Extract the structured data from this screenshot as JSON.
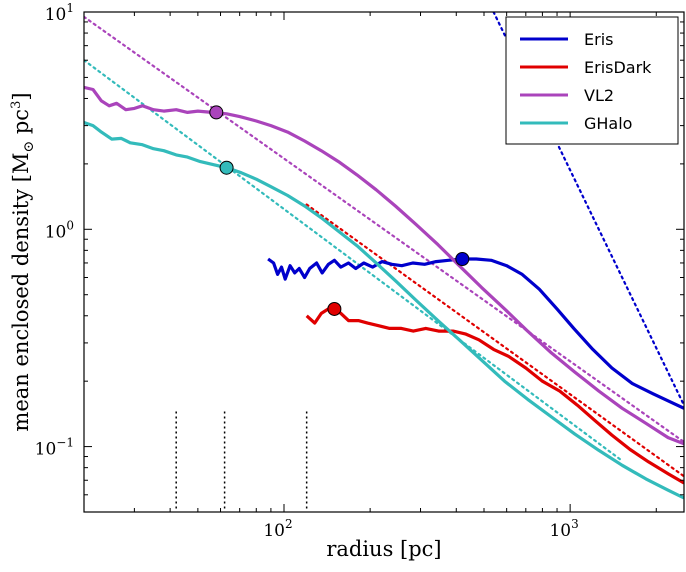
{
  "chart_data": {
    "type": "line",
    "xscale": "log",
    "yscale": "log",
    "xlim": [
      20,
      2500
    ],
    "ylim": [
      0.05,
      10
    ],
    "xlabel": "radius  [pc]",
    "ylabel_main": "mean enclosed density  [M",
    "ylabel_sub": "⊙",
    "ylabel_tail": " pc",
    "ylabel_sup": "3",
    "ylabel_close": "]",
    "xticks": [
      {
        "value": 100,
        "base": "10",
        "exp": "2"
      },
      {
        "value": 1000,
        "base": "10",
        "exp": "3"
      }
    ],
    "yticks": [
      {
        "value": 0.1,
        "base": "10",
        "exp": "−1"
      },
      {
        "value": 1,
        "base": "10",
        "exp": "0"
      },
      {
        "value": 10,
        "base": "10",
        "exp": "1"
      }
    ],
    "legend_position": "top-right",
    "vertical_markers": [
      42,
      62,
      120
    ],
    "series": [
      {
        "name": "Eris",
        "color": "#0000cc",
        "points": [
          [
            88,
            0.73
          ],
          [
            92,
            0.7
          ],
          [
            95,
            0.62
          ],
          [
            98,
            0.67
          ],
          [
            101,
            0.59
          ],
          [
            105,
            0.68
          ],
          [
            109,
            0.63
          ],
          [
            113,
            0.66
          ],
          [
            118,
            0.6
          ],
          [
            123,
            0.66
          ],
          [
            130,
            0.7
          ],
          [
            136,
            0.63
          ],
          [
            143,
            0.69
          ],
          [
            150,
            0.72
          ],
          [
            158,
            0.67
          ],
          [
            168,
            0.7
          ],
          [
            178,
            0.66
          ],
          [
            190,
            0.7
          ],
          [
            204,
            0.67
          ],
          [
            220,
            0.71
          ],
          [
            238,
            0.69
          ],
          [
            258,
            0.68
          ],
          [
            282,
            0.7
          ],
          [
            310,
            0.69
          ],
          [
            340,
            0.71
          ],
          [
            375,
            0.72
          ],
          [
            420,
            0.73
          ],
          [
            470,
            0.73
          ],
          [
            530,
            0.72
          ],
          [
            600,
            0.68
          ],
          [
            680,
            0.62
          ],
          [
            780,
            0.53
          ],
          [
            900,
            0.43
          ],
          [
            1030,
            0.35
          ],
          [
            1200,
            0.28
          ],
          [
            1400,
            0.23
          ],
          [
            1650,
            0.195
          ],
          [
            1950,
            0.175
          ],
          [
            2300,
            0.158
          ],
          [
            2500,
            0.15
          ]
        ],
        "marker": [
          420,
          0.73
        ],
        "fit": [
          [
            540,
            10
          ],
          [
            2500,
            0.155
          ]
        ]
      },
      {
        "name": "ErisDark",
        "color": "#e00000",
        "points": [
          [
            120,
            0.4
          ],
          [
            128,
            0.37
          ],
          [
            135,
            0.41
          ],
          [
            143,
            0.43
          ],
          [
            155,
            0.42
          ],
          [
            168,
            0.38
          ],
          [
            182,
            0.38
          ],
          [
            196,
            0.37
          ],
          [
            214,
            0.36
          ],
          [
            234,
            0.35
          ],
          [
            257,
            0.35
          ],
          [
            283,
            0.34
          ],
          [
            313,
            0.35
          ],
          [
            347,
            0.34
          ],
          [
            390,
            0.34
          ],
          [
            430,
            0.33
          ],
          [
            480,
            0.31
          ],
          [
            540,
            0.28
          ],
          [
            610,
            0.26
          ],
          [
            700,
            0.23
          ],
          [
            800,
            0.2
          ],
          [
            920,
            0.18
          ],
          [
            1060,
            0.155
          ],
          [
            1220,
            0.132
          ],
          [
            1400,
            0.113
          ],
          [
            1620,
            0.097
          ],
          [
            1880,
            0.085
          ],
          [
            2200,
            0.075
          ],
          [
            2500,
            0.068
          ]
        ],
        "marker": [
          150,
          0.43
        ],
        "fit": [
          [
            120,
            1.3
          ],
          [
            2500,
            0.073
          ]
        ]
      },
      {
        "name": "VL2",
        "color": "#aa44bb",
        "points": [
          [
            20,
            4.5
          ],
          [
            21.5,
            4.4
          ],
          [
            23,
            3.9
          ],
          [
            24.5,
            3.7
          ],
          [
            26,
            3.8
          ],
          [
            28,
            3.55
          ],
          [
            30,
            3.6
          ],
          [
            32,
            3.7
          ],
          [
            35,
            3.55
          ],
          [
            38,
            3.5
          ],
          [
            42,
            3.55
          ],
          [
            46,
            3.45
          ],
          [
            50,
            3.5
          ],
          [
            56,
            3.45
          ],
          [
            63,
            3.4
          ],
          [
            70,
            3.3
          ],
          [
            80,
            3.15
          ],
          [
            90,
            3.0
          ],
          [
            103,
            2.8
          ],
          [
            118,
            2.55
          ],
          [
            135,
            2.3
          ],
          [
            155,
            2.05
          ],
          [
            180,
            1.78
          ],
          [
            210,
            1.52
          ],
          [
            245,
            1.28
          ],
          [
            290,
            1.05
          ],
          [
            345,
            0.85
          ],
          [
            410,
            0.68
          ],
          [
            490,
            0.54
          ],
          [
            590,
            0.43
          ],
          [
            710,
            0.34
          ],
          [
            860,
            0.27
          ],
          [
            1040,
            0.22
          ],
          [
            1260,
            0.18
          ],
          [
            1520,
            0.15
          ],
          [
            1840,
            0.128
          ],
          [
            2200,
            0.11
          ],
          [
            2500,
            0.103
          ]
        ],
        "marker": [
          58,
          3.45
        ],
        "fit": [
          [
            20,
            9.5
          ],
          [
            2500,
            0.105
          ]
        ]
      },
      {
        "name": "GHalo",
        "color": "#33bbbb",
        "points": [
          [
            20,
            3.1
          ],
          [
            21.5,
            3.0
          ],
          [
            23,
            2.8
          ],
          [
            25,
            2.6
          ],
          [
            27,
            2.62
          ],
          [
            29,
            2.5
          ],
          [
            32,
            2.45
          ],
          [
            35,
            2.35
          ],
          [
            38,
            2.3
          ],
          [
            42,
            2.2
          ],
          [
            46,
            2.15
          ],
          [
            51,
            2.05
          ],
          [
            57,
            1.98
          ],
          [
            63,
            1.92
          ],
          [
            71,
            1.82
          ],
          [
            80,
            1.7
          ],
          [
            90,
            1.57
          ],
          [
            103,
            1.43
          ],
          [
            118,
            1.28
          ],
          [
            135,
            1.13
          ],
          [
            155,
            0.98
          ],
          [
            180,
            0.84
          ],
          [
            210,
            0.7
          ],
          [
            245,
            0.58
          ],
          [
            290,
            0.47
          ],
          [
            345,
            0.38
          ],
          [
            410,
            0.31
          ],
          [
            490,
            0.25
          ],
          [
            590,
            0.2
          ],
          [
            710,
            0.165
          ],
          [
            860,
            0.137
          ],
          [
            1040,
            0.114
          ],
          [
            1260,
            0.096
          ],
          [
            1520,
            0.082
          ],
          [
            1840,
            0.071
          ],
          [
            2200,
            0.063
          ],
          [
            2500,
            0.058
          ]
        ],
        "marker": [
          63,
          1.92
        ],
        "fit": [
          [
            20,
            6.0
          ],
          [
            1520,
            0.086
          ]
        ]
      }
    ]
  }
}
